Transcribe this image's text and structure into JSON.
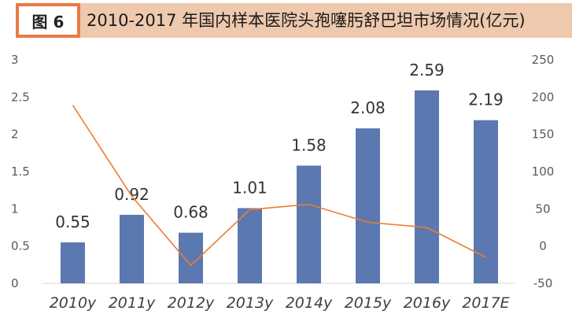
{
  "header": {
    "figure_label": "图 6",
    "title": "2010-2017 年国内样本医院头孢噻肟舒巴坦市场情况(亿元)"
  },
  "colors": {
    "bar": "#5b78b0",
    "line": "#ed7d31",
    "badge": "#ea7a45",
    "title_bg": "#efc9ad"
  },
  "chart_data": {
    "type": "bar",
    "categories": [
      "2010y",
      "2011y",
      "2012y",
      "2013y",
      "2014y",
      "2015y",
      "2016y",
      "2017E"
    ],
    "series": [
      {
        "type": "bar",
        "axis": "left",
        "values": [
          0.55,
          0.92,
          0.68,
          1.01,
          1.58,
          2.08,
          2.59,
          2.19
        ],
        "data_labels": [
          "0.55",
          "0.92",
          "0.68",
          "1.01",
          "1.58",
          "2.08",
          "2.59",
          "2.19"
        ]
      },
      {
        "type": "line",
        "axis": "right",
        "values": [
          189,
          67,
          -26,
          49,
          56,
          32,
          25,
          -15
        ]
      }
    ],
    "y_left": {
      "range": [
        0,
        3
      ],
      "ticks": [
        "0",
        "0.5",
        "1",
        "1.5",
        "2",
        "2.5",
        "3"
      ]
    },
    "y_right": {
      "range": [
        -50,
        250
      ],
      "ticks": [
        "-50",
        "0",
        "50",
        "100",
        "150",
        "200",
        "250"
      ]
    },
    "grid": false,
    "legend": "none"
  }
}
